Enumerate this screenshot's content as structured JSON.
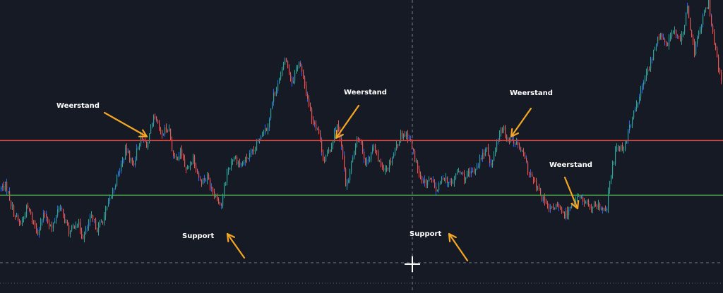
{
  "chart_data": {
    "type": "candlestick",
    "grid": false,
    "ylim": [
      0,
      100
    ],
    "colors": {
      "background": "#161a25",
      "up": "#26a69a",
      "down": "#ef5350",
      "wick_blue": "#2962ff",
      "resistance_line": "#e53935",
      "support_line": "#43a047",
      "arrow": "#f5a623",
      "crosshair": "#9598a1",
      "label": "#ffffff"
    },
    "price_path": [
      [
        0,
        26
      ],
      [
        10,
        28
      ],
      [
        20,
        15
      ],
      [
        30,
        8
      ],
      [
        40,
        17
      ],
      [
        55,
        5
      ],
      [
        65,
        14
      ],
      [
        75,
        6
      ],
      [
        85,
        18
      ],
      [
        100,
        4
      ],
      [
        110,
        10
      ],
      [
        120,
        2
      ],
      [
        130,
        12
      ],
      [
        140,
        6
      ],
      [
        150,
        13
      ],
      [
        160,
        24
      ],
      [
        170,
        35
      ],
      [
        180,
        46
      ],
      [
        190,
        38
      ],
      [
        200,
        52
      ],
      [
        210,
        48
      ],
      [
        220,
        62
      ],
      [
        230,
        53
      ],
      [
        240,
        58
      ],
      [
        248,
        40
      ],
      [
        258,
        45
      ],
      [
        265,
        35
      ],
      [
        275,
        42
      ],
      [
        285,
        30
      ],
      [
        295,
        32
      ],
      [
        305,
        24
      ],
      [
        315,
        18
      ],
      [
        322,
        33
      ],
      [
        332,
        43
      ],
      [
        342,
        38
      ],
      [
        352,
        42
      ],
      [
        362,
        45
      ],
      [
        372,
        55
      ],
      [
        380,
        57
      ],
      [
        390,
        75
      ],
      [
        400,
        83
      ],
      [
        405,
        92
      ],
      [
        415,
        80
      ],
      [
        425,
        90
      ],
      [
        435,
        75
      ],
      [
        443,
        62
      ],
      [
        452,
        56
      ],
      [
        460,
        40
      ],
      [
        470,
        47
      ],
      [
        478,
        60
      ],
      [
        486,
        45
      ],
      [
        492,
        26
      ],
      [
        500,
        40
      ],
      [
        510,
        54
      ],
      [
        520,
        38
      ],
      [
        530,
        48
      ],
      [
        540,
        38
      ],
      [
        550,
        37
      ],
      [
        560,
        45
      ],
      [
        570,
        54
      ],
      [
        580,
        53
      ],
      [
        590,
        40
      ],
      [
        600,
        28
      ],
      [
        610,
        31
      ],
      [
        620,
        25
      ],
      [
        630,
        33
      ],
      [
        640,
        28
      ],
      [
        650,
        35
      ],
      [
        660,
        32
      ],
      [
        670,
        34
      ],
      [
        680,
        40
      ],
      [
        690,
        46
      ],
      [
        698,
        38
      ],
      [
        705,
        50
      ],
      [
        712,
        58
      ],
      [
        720,
        52
      ],
      [
        730,
        50
      ],
      [
        740,
        45
      ],
      [
        750,
        35
      ],
      [
        760,
        28
      ],
      [
        770,
        21
      ],
      [
        780,
        15
      ],
      [
        790,
        18
      ],
      [
        800,
        12
      ],
      [
        810,
        18
      ],
      [
        820,
        22
      ],
      [
        830,
        20
      ],
      [
        840,
        16
      ],
      [
        850,
        17
      ],
      [
        860,
        14
      ],
      [
        865,
        30
      ],
      [
        875,
        48
      ],
      [
        885,
        47
      ],
      [
        895,
        60
      ],
      [
        905,
        70
      ],
      [
        915,
        82
      ],
      [
        925,
        92
      ],
      [
        935,
        104
      ],
      [
        945,
        98
      ],
      [
        955,
        106
      ],
      [
        965,
        100
      ],
      [
        975,
        116
      ],
      [
        985,
        95
      ],
      [
        995,
        110
      ],
      [
        1005,
        120
      ],
      [
        1015,
        95
      ],
      [
        1024,
        78
      ]
    ],
    "levels": [
      {
        "name": "resistance",
        "value": 50.5
      },
      {
        "name": "support",
        "value": 23
      }
    ],
    "annotations": [
      {
        "text": "Weerstand"
      },
      {
        "text": "Weerstand"
      },
      {
        "text": "Weerstand"
      },
      {
        "text": "Weerstand"
      },
      {
        "text": "Support"
      },
      {
        "text": "Support"
      }
    ]
  }
}
